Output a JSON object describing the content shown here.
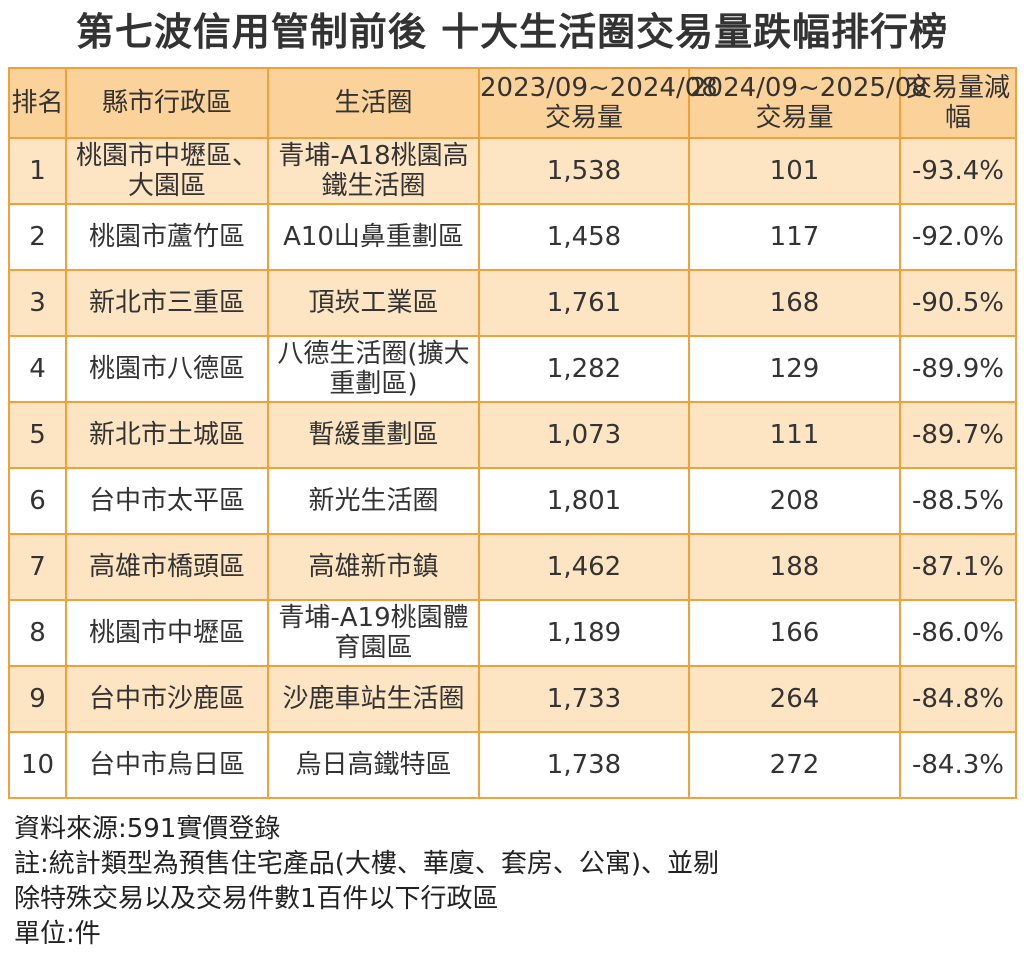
{
  "title": "第七波信用管制前後  十大生活圈交易量跌幅排行榜",
  "table": {
    "headers": {
      "rank": "排名",
      "district": "縣市行政區",
      "area": "生活圈",
      "before": "2023/09~2024/08交易量",
      "after": "2024/09~2025/08交易量",
      "change": "交易量減幅"
    },
    "rows": [
      {
        "rank": "1",
        "district": "桃園市中壢區、大園區",
        "area": "青埔-A18桃園高鐵生活圈",
        "before": "1,538",
        "after": "101",
        "change": "-93.4%"
      },
      {
        "rank": "2",
        "district": "桃園市蘆竹區",
        "area": "A10山鼻重劃區",
        "before": "1,458",
        "after": "117",
        "change": "-92.0%"
      },
      {
        "rank": "3",
        "district": "新北市三重區",
        "area": "頂崁工業區",
        "before": "1,761",
        "after": "168",
        "change": "-90.5%"
      },
      {
        "rank": "4",
        "district": "桃園市八德區",
        "area": "八德生活圈(擴大重劃區)",
        "before": "1,282",
        "after": "129",
        "change": "-89.9%"
      },
      {
        "rank": "5",
        "district": "新北市土城區",
        "area": "暫緩重劃區",
        "before": "1,073",
        "after": "111",
        "change": "-89.7%"
      },
      {
        "rank": "6",
        "district": "台中市太平區",
        "area": "新光生活圈",
        "before": "1,801",
        "after": "208",
        "change": "-88.5%"
      },
      {
        "rank": "7",
        "district": "高雄市橋頭區",
        "area": "高雄新市鎮",
        "before": "1,462",
        "after": "188",
        "change": "-87.1%"
      },
      {
        "rank": "8",
        "district": "桃園市中壢區",
        "area": "青埔-A19桃園體育園區",
        "before": "1,189",
        "after": "166",
        "change": "-86.0%"
      },
      {
        "rank": "9",
        "district": "台中市沙鹿區",
        "area": "沙鹿車站生活圈",
        "before": "1,733",
        "after": "264",
        "change": "-84.8%"
      },
      {
        "rank": "10",
        "district": "台中市烏日區",
        "area": "烏日高鐵特區",
        "before": "1,738",
        "after": "272",
        "change": "-84.3%"
      }
    ]
  },
  "notes": {
    "source": "資料來源:591實價登錄",
    "note_line1": "註:統計類型為預售住宅產品(大樓、華廈、套房、公寓)、並剔",
    "note_line2": "除特殊交易以及交易件數1百件以下行政區",
    "unit": "單位:件"
  },
  "colors": {
    "header_bg": "#fbd29a",
    "odd_row_bg": "#fde5c4",
    "even_row_bg": "#ffffff",
    "border": "#f2a13a"
  }
}
